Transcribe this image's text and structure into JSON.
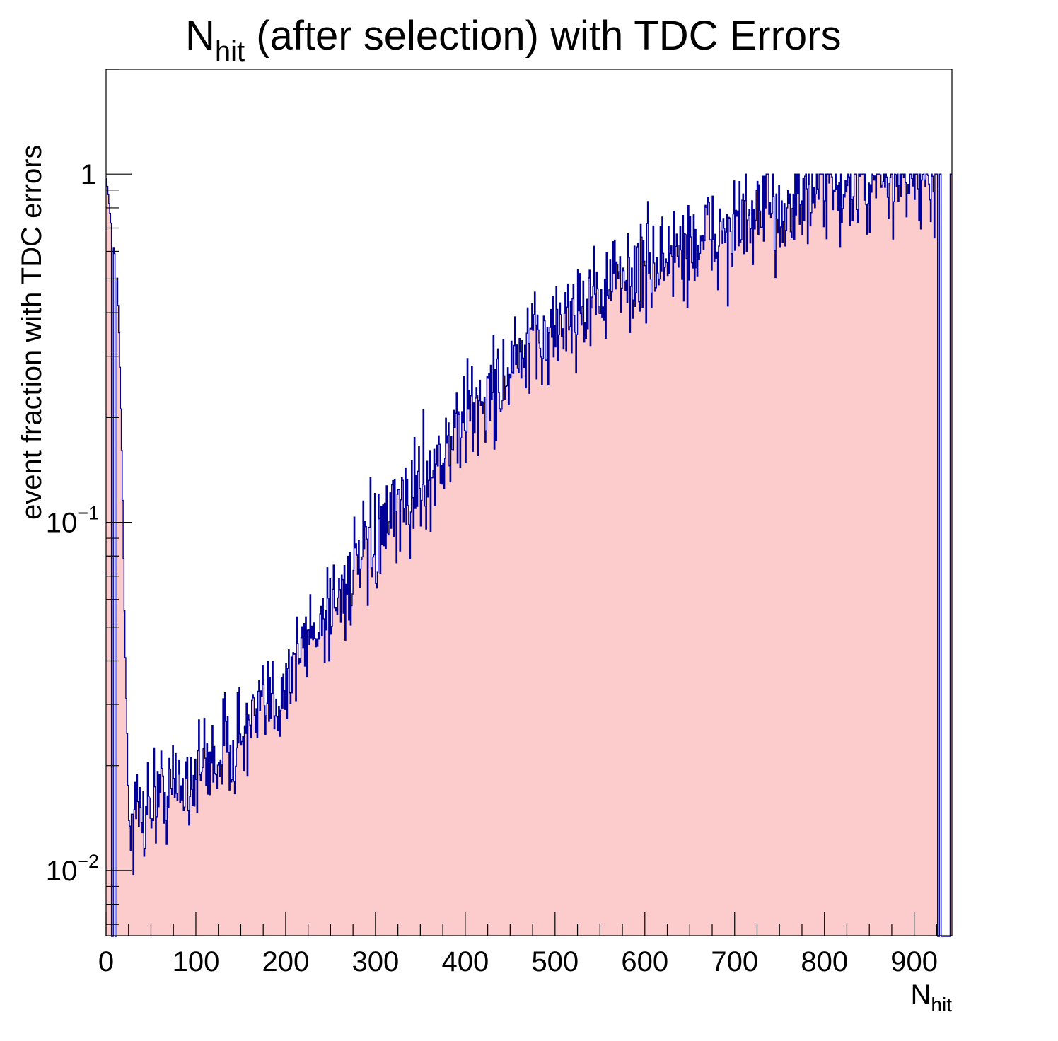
{
  "chart_data": {
    "type": "histogram",
    "title": {
      "main": "N",
      "sub": "hit",
      "rest": " (after selection) with TDC Errors"
    },
    "xlabel": {
      "main": "N",
      "sub": "hit"
    },
    "ylabel": "event fraction with TDC errors",
    "x_range": [
      0,
      942
    ],
    "y_range": [
      0.0065,
      2.0
    ],
    "y_scale": "log",
    "x_ticks": [
      "0",
      "100",
      "200",
      "300",
      "400",
      "500",
      "600",
      "700",
      "800",
      "900"
    ],
    "y_ticks": [
      {
        "value": 1,
        "label": "1",
        "exp": ""
      },
      {
        "value": 0.1,
        "label": "10",
        "exp": "−1"
      },
      {
        "value": 0.01,
        "label": "10",
        "exp": "−2"
      }
    ],
    "fill_color": "#fccccc",
    "line_color": "#000099",
    "bin_width": 1,
    "anchors": [
      [
        0,
        1.0
      ],
      [
        3,
        0.85
      ],
      [
        6,
        0.7
      ],
      [
        9,
        0.6
      ],
      [
        12,
        0.55
      ],
      [
        15,
        0.32
      ],
      [
        18,
        0.14
      ],
      [
        20,
        0.065
      ],
      [
        22,
        0.035
      ],
      [
        24,
        0.022
      ],
      [
        25,
        0.014
      ],
      [
        28,
        0.0135
      ],
      [
        35,
        0.0145
      ],
      [
        50,
        0.016
      ],
      [
        80,
        0.0175
      ],
      [
        100,
        0.019
      ],
      [
        130,
        0.022
      ],
      [
        150,
        0.024
      ],
      [
        180,
        0.029
      ],
      [
        200,
        0.035
      ],
      [
        230,
        0.049
      ],
      [
        260,
        0.062
      ],
      [
        290,
        0.08
      ],
      [
        320,
        0.1
      ],
      [
        350,
        0.13
      ],
      [
        380,
        0.16
      ],
      [
        400,
        0.2
      ],
      [
        430,
        0.235
      ],
      [
        460,
        0.29
      ],
      [
        500,
        0.36
      ],
      [
        530,
        0.42
      ],
      [
        560,
        0.47
      ],
      [
        600,
        0.53
      ],
      [
        640,
        0.6
      ],
      [
        680,
        0.66
      ],
      [
        720,
        0.73
      ],
      [
        760,
        0.82
      ],
      [
        800,
        0.88
      ],
      [
        840,
        0.94
      ],
      [
        870,
        0.97
      ],
      [
        900,
        0.96
      ],
      [
        920,
        0.92
      ],
      [
        932,
        0.9
      ]
    ],
    "empty_bins": [
      [
        6,
        7
      ],
      [
        10,
        11
      ],
      [
        926,
        927
      ],
      [
        930,
        939
      ]
    ],
    "full_bins": [
      [
        928,
        929
      ],
      [
        940,
        941
      ]
    ],
    "noise_amplitude": 0.17
  }
}
